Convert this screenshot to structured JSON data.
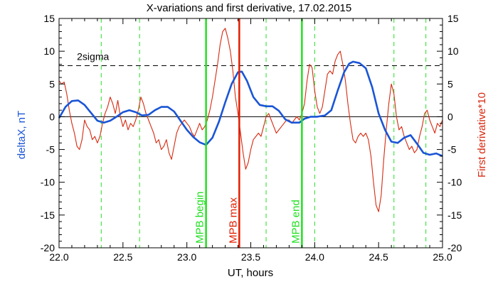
{
  "chart_data": {
    "type": "line",
    "title": "X-variations and first derivative, 17.02.2015",
    "xlabel": "UT, hours",
    "ylabel_left": "deltaX, nT",
    "ylabel_right": "First derivative*10",
    "xlim": [
      22.0,
      25.0
    ],
    "ylim": [
      -20,
      15
    ],
    "x_ticks": [
      "22.0",
      "22.5",
      "23.0",
      "23.5",
      "24.0",
      "24.5",
      "25.0"
    ],
    "y_ticks": [
      "-20",
      "-15",
      "-10",
      "-5",
      "0",
      "5",
      "10",
      "15"
    ],
    "colors": {
      "deltaX": "#1a55d6",
      "derivative": "#d62a10",
      "marker_green": "#22e022",
      "marker_red": "#e01e00",
      "axis": "#000000"
    },
    "sigma_line": {
      "label": "2sigma",
      "y": 7.8
    },
    "zero_line": 0,
    "green_dashed_x": [
      22.33,
      22.63,
      23.62,
      24.0,
      24.62,
      24.87
    ],
    "markers": [
      {
        "label": "MPB begin",
        "x": 23.15,
        "color": "green"
      },
      {
        "label": "MPB max",
        "x": 23.41,
        "color": "red"
      },
      {
        "label": "MPB end",
        "x": 23.9,
        "color": "green"
      }
    ],
    "series": [
      {
        "key": "deltaX",
        "values": [
          [
            22.0,
            -0.2
          ],
          [
            22.05,
            1.5
          ],
          [
            22.1,
            2.4
          ],
          [
            22.15,
            2.5
          ],
          [
            22.2,
            1.8
          ],
          [
            22.25,
            0.6
          ],
          [
            22.3,
            -0.6
          ],
          [
            22.35,
            -0.9
          ],
          [
            22.4,
            -0.6
          ],
          [
            22.45,
            0.0
          ],
          [
            22.5,
            0.7
          ],
          [
            22.55,
            1.0
          ],
          [
            22.6,
            0.7
          ],
          [
            22.65,
            0.2
          ],
          [
            22.7,
            0.3
          ],
          [
            22.75,
            1.0
          ],
          [
            22.8,
            1.5
          ],
          [
            22.85,
            1.5
          ],
          [
            22.9,
            0.8
          ],
          [
            22.95,
            -0.6
          ],
          [
            23.0,
            -2.0
          ],
          [
            23.05,
            -3.1
          ],
          [
            23.1,
            -3.9
          ],
          [
            23.15,
            -4.3
          ],
          [
            23.2,
            -3.2
          ],
          [
            23.25,
            -0.8
          ],
          [
            23.3,
            2.2
          ],
          [
            23.35,
            5.0
          ],
          [
            23.4,
            6.8
          ],
          [
            23.43,
            6.9
          ],
          [
            23.47,
            5.5
          ],
          [
            23.52,
            3.0
          ],
          [
            23.57,
            1.8
          ],
          [
            23.62,
            1.6
          ],
          [
            23.67,
            1.6
          ],
          [
            23.72,
            0.9
          ],
          [
            23.77,
            -0.4
          ],
          [
            23.82,
            -0.9
          ],
          [
            23.88,
            -0.9
          ],
          [
            23.92,
            -0.3
          ],
          [
            23.97,
            0.0
          ],
          [
            24.02,
            0.0
          ],
          [
            24.08,
            0.2
          ],
          [
            24.13,
            1.0
          ],
          [
            24.18,
            4.0
          ],
          [
            24.23,
            6.8
          ],
          [
            24.27,
            8.1
          ],
          [
            24.3,
            8.4
          ],
          [
            24.35,
            8.2
          ],
          [
            24.4,
            7.4
          ],
          [
            24.45,
            4.5
          ],
          [
            24.5,
            0.5
          ],
          [
            24.55,
            -2.0
          ],
          [
            24.6,
            -3.8
          ],
          [
            24.65,
            -4.0
          ],
          [
            24.7,
            -3.2
          ],
          [
            24.75,
            -2.8
          ],
          [
            24.8,
            -4.1
          ],
          [
            24.85,
            -5.5
          ],
          [
            24.9,
            -5.8
          ],
          [
            24.95,
            -5.6
          ],
          [
            25.0,
            -6.0
          ]
        ]
      },
      {
        "key": "derivative",
        "values": [
          [
            22.0,
            5.5
          ],
          [
            22.02,
            5.0
          ],
          [
            22.04,
            5.3
          ],
          [
            22.06,
            3.5
          ],
          [
            22.08,
            1.0
          ],
          [
            22.1,
            -1.0
          ],
          [
            22.12,
            -2.5
          ],
          [
            22.14,
            -4.5
          ],
          [
            22.16,
            -5.0
          ],
          [
            22.18,
            -3.5
          ],
          [
            22.2,
            -0.5
          ],
          [
            22.22,
            -1.5
          ],
          [
            22.24,
            -2.0
          ],
          [
            22.26,
            -3.5
          ],
          [
            22.28,
            -3.0
          ],
          [
            22.3,
            -4.0
          ],
          [
            22.32,
            -3.0
          ],
          [
            22.34,
            -1.0
          ],
          [
            22.36,
            0.5
          ],
          [
            22.38,
            1.5
          ],
          [
            22.4,
            3.0
          ],
          [
            22.42,
            2.0
          ],
          [
            22.44,
            0.5
          ],
          [
            22.46,
            2.5
          ],
          [
            22.48,
            0.0
          ],
          [
            22.5,
            -1.5
          ],
          [
            22.52,
            -0.5
          ],
          [
            22.54,
            -2.0
          ],
          [
            22.56,
            -1.0
          ],
          [
            22.58,
            -1.5
          ],
          [
            22.6,
            -0.5
          ],
          [
            22.62,
            1.0
          ],
          [
            22.64,
            3.0
          ],
          [
            22.66,
            2.0
          ],
          [
            22.68,
            0.5
          ],
          [
            22.7,
            -0.5
          ],
          [
            22.72,
            -1.5
          ],
          [
            22.74,
            -2.5
          ],
          [
            22.76,
            -4.0
          ],
          [
            22.78,
            -3.5
          ],
          [
            22.8,
            -5.0
          ],
          [
            22.82,
            -4.5
          ],
          [
            22.84,
            -3.5
          ],
          [
            22.86,
            -5.5
          ],
          [
            22.88,
            -6.5
          ],
          [
            22.9,
            -4.5
          ],
          [
            22.92,
            -2.5
          ],
          [
            22.94,
            -1.5
          ],
          [
            22.96,
            -1.0
          ],
          [
            22.98,
            -0.5
          ],
          [
            23.0,
            -1.0
          ],
          [
            23.02,
            -1.5
          ],
          [
            23.04,
            -2.5
          ],
          [
            23.06,
            -3.0
          ],
          [
            23.08,
            -2.0
          ],
          [
            23.1,
            -1.0
          ],
          [
            23.12,
            -2.0
          ],
          [
            23.14,
            -1.5
          ],
          [
            23.16,
            -0.5
          ],
          [
            23.18,
            1.0
          ],
          [
            23.2,
            3.0
          ],
          [
            23.22,
            5.5
          ],
          [
            23.24,
            8.0
          ],
          [
            23.26,
            11.0
          ],
          [
            23.28,
            13.0
          ],
          [
            23.3,
            13.5
          ],
          [
            23.32,
            12.0
          ],
          [
            23.34,
            10.0
          ],
          [
            23.36,
            7.0
          ],
          [
            23.38,
            3.0
          ],
          [
            23.4,
            0.5
          ],
          [
            23.42,
            -2.5
          ],
          [
            23.44,
            -5.5
          ],
          [
            23.46,
            -8.0
          ],
          [
            23.48,
            -7.0
          ],
          [
            23.5,
            -5.0
          ],
          [
            23.52,
            -3.5
          ],
          [
            23.54,
            -3.0
          ],
          [
            23.56,
            -2.5
          ],
          [
            23.58,
            -3.0
          ],
          [
            23.6,
            -1.5
          ],
          [
            23.62,
            0.0
          ],
          [
            23.64,
            0.5
          ],
          [
            23.66,
            -0.5
          ],
          [
            23.68,
            -1.5
          ],
          [
            23.7,
            -2.5
          ],
          [
            23.72,
            -2.0
          ],
          [
            23.74,
            -1.5
          ],
          [
            23.76,
            -1.0
          ],
          [
            23.78,
            -0.5
          ],
          [
            23.8,
            -0.5
          ],
          [
            23.82,
            -1.0
          ],
          [
            23.84,
            -0.5
          ],
          [
            23.86,
            0.0
          ],
          [
            23.88,
            -0.5
          ],
          [
            23.9,
            0.5
          ],
          [
            23.92,
            2.0
          ],
          [
            23.94,
            5.5
          ],
          [
            23.96,
            8.0
          ],
          [
            23.98,
            7.5
          ],
          [
            24.0,
            4.0
          ],
          [
            24.02,
            1.5
          ],
          [
            24.04,
            0.5
          ],
          [
            24.06,
            1.5
          ],
          [
            24.08,
            4.0
          ],
          [
            24.1,
            6.5
          ],
          [
            24.12,
            7.0
          ],
          [
            24.14,
            6.5
          ],
          [
            24.16,
            8.5
          ],
          [
            24.18,
            9.5
          ],
          [
            24.2,
            10.0
          ],
          [
            24.22,
            8.0
          ],
          [
            24.24,
            5.5
          ],
          [
            24.26,
            2.0
          ],
          [
            24.28,
            -1.0
          ],
          [
            24.3,
            -3.5
          ],
          [
            24.32,
            -4.0
          ],
          [
            24.34,
            -3.0
          ],
          [
            24.36,
            -2.5
          ],
          [
            24.38,
            -3.0
          ],
          [
            24.4,
            -2.5
          ],
          [
            24.42,
            -3.5
          ],
          [
            24.44,
            -6.0
          ],
          [
            24.46,
            -10.0
          ],
          [
            24.48,
            -13.5
          ],
          [
            24.5,
            -14.5
          ],
          [
            24.52,
            -12.0
          ],
          [
            24.54,
            -6.5
          ],
          [
            24.56,
            -2.0
          ],
          [
            24.58,
            2.0
          ],
          [
            24.6,
            5.0
          ],
          [
            24.62,
            3.5
          ],
          [
            24.64,
            0.0
          ],
          [
            24.66,
            -2.0
          ],
          [
            24.68,
            -1.5
          ],
          [
            24.7,
            -3.0
          ],
          [
            24.72,
            -4.0
          ],
          [
            24.74,
            -5.0
          ],
          [
            24.76,
            -4.5
          ],
          [
            24.78,
            -5.5
          ],
          [
            24.8,
            -5.0
          ],
          [
            24.82,
            -3.0
          ],
          [
            24.84,
            -1.5
          ],
          [
            24.86,
            0.5
          ],
          [
            24.88,
            1.0
          ],
          [
            24.9,
            -0.5
          ],
          [
            24.92,
            -1.5
          ],
          [
            24.94,
            -2.5
          ],
          [
            24.96,
            -1.0
          ],
          [
            24.98,
            -1.5
          ],
          [
            25.0,
            -0.5
          ]
        ]
      }
    ]
  }
}
